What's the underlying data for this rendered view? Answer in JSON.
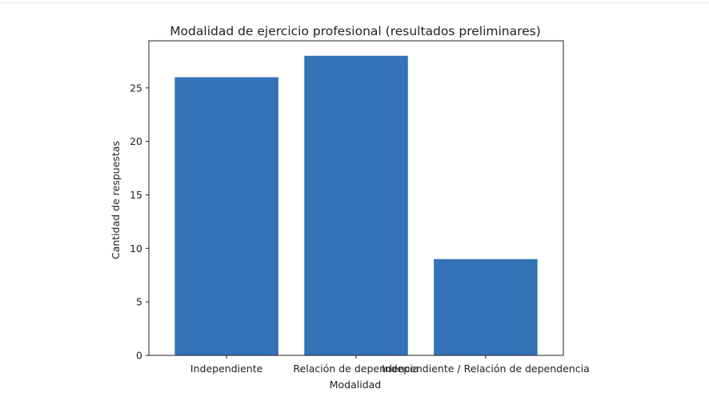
{
  "chart_data": {
    "type": "bar",
    "title": "Modalidad de ejercicio profesional (resultados preliminares)",
    "xlabel": "Modalidad",
    "ylabel": "Cantidad de respuestas",
    "categories": [
      "Independiente",
      "Relación de dependencia",
      "Independiente / Relación de dependencia"
    ],
    "values": [
      26,
      28,
      9
    ],
    "ylim": [
      0,
      29.4
    ],
    "yticks": [
      0,
      5,
      10,
      15,
      20,
      25
    ],
    "bar_color": "#3274b5",
    "grid": false,
    "legend": "none"
  }
}
